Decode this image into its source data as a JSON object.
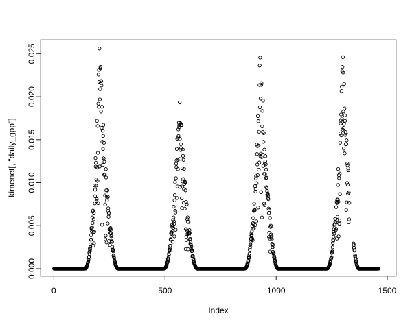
{
  "figure_background": "#ffffff",
  "chart_data": {
    "type": "scatter",
    "title": "",
    "xlabel": "Index",
    "ylabel": "kimenet[, \"daily_gpp\"]",
    "legend": null,
    "grid": false,
    "marker": "open-circle",
    "marker_color": "#000000",
    "border_color": "#888888",
    "tick_color": "#222222",
    "text_color": "#000000",
    "xlim": [
      -60,
      1540
    ],
    "ylim": [
      -0.00088,
      0.02662
    ],
    "x_ticks": [
      0,
      500,
      1000,
      1500
    ],
    "x_tick_labels": [
      "0",
      "500",
      "1000",
      "1500"
    ],
    "y_ticks": [
      0,
      0.005,
      0.01,
      0.015,
      0.02,
      0.025
    ],
    "y_tick_labels": [
      "0.000",
      "0.005",
      "0.010",
      "0.015",
      "0.020",
      "0.025"
    ],
    "n_points": 1460,
    "baseline_value": 0,
    "seed": 7,
    "rise_exponent": 2.2,
    "fall_exponent": 1.9,
    "seasons": [
      {
        "rise_start": 140,
        "peak_index": 205,
        "fall_end": 288,
        "peak_value": 0.0256
      },
      {
        "rise_start": 495,
        "peak_index": 565,
        "fall_end": 645,
        "peak_value": 0.0204
      },
      {
        "rise_start": 858,
        "peak_index": 930,
        "fall_end": 1008,
        "peak_value": 0.0255
      },
      {
        "rise_start": 1228,
        "peak_index": 1300,
        "fall_end": 1372,
        "peak_value": 0.0246,
        "data_gap": [
          1330,
          1347
        ]
      }
    ]
  }
}
